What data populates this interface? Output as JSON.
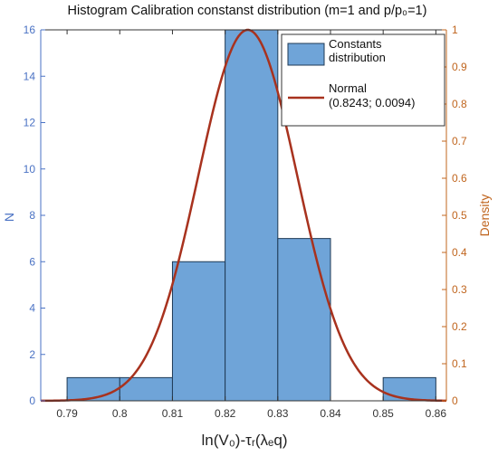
{
  "chart_data": {
    "type": "bar",
    "title": "Histogram Calibration constanst distribution (m=1 and p/p₀=1)",
    "xlabel": "ln(V₀)-τᵣ(λₑq)",
    "ylabel": "N",
    "ylabel_right": "Density",
    "xlim": [
      0.785,
      0.862
    ],
    "ylim": [
      0,
      16
    ],
    "ylim_right": [
      0,
      1
    ],
    "x_ticks": [
      "0.79",
      "0.8",
      "0.81",
      "0.82",
      "0.83",
      "0.84",
      "0.85",
      "0.86"
    ],
    "y_ticks": [
      "0",
      "2",
      "4",
      "6",
      "8",
      "10",
      "12",
      "14",
      "16"
    ],
    "y_ticks_right": [
      "0",
      "0.1",
      "0.2",
      "0.3",
      "0.4",
      "0.5",
      "0.6",
      "0.7",
      "0.8",
      "0.9",
      "1"
    ],
    "bins": [
      {
        "x0": 0.79,
        "x1": 0.8,
        "count": 1
      },
      {
        "x0": 0.8,
        "x1": 0.81,
        "count": 1
      },
      {
        "x0": 0.81,
        "x1": 0.82,
        "count": 6
      },
      {
        "x0": 0.82,
        "x1": 0.83,
        "count": 16
      },
      {
        "x0": 0.83,
        "x1": 0.84,
        "count": 7
      },
      {
        "x0": 0.84,
        "x1": 0.85,
        "count": 0
      },
      {
        "x0": 0.85,
        "x1": 0.86,
        "count": 1
      }
    ],
    "normal_fit": {
      "mean": 0.8243,
      "std": 0.0094,
      "peak_density": 1
    },
    "grid": false,
    "legend_position": "top-right",
    "series": [
      {
        "name": "Constants distribution",
        "label_lines": [
          "Constants",
          "distribution"
        ],
        "kind": "bar",
        "color": "#6fa4d8"
      },
      {
        "name": "Normal (0.8243; 0.0094)",
        "label_lines": [
          "Normal",
          "(0.8243; 0.0094)"
        ],
        "kind": "line",
        "color": "#a8321e"
      }
    ],
    "colors": {
      "bar_fill": "#6fa4d8",
      "bar_edge": "#1f3a55",
      "curve": "#a8321e",
      "left_axis": "#4a72c4",
      "right_axis": "#c0651e"
    }
  }
}
